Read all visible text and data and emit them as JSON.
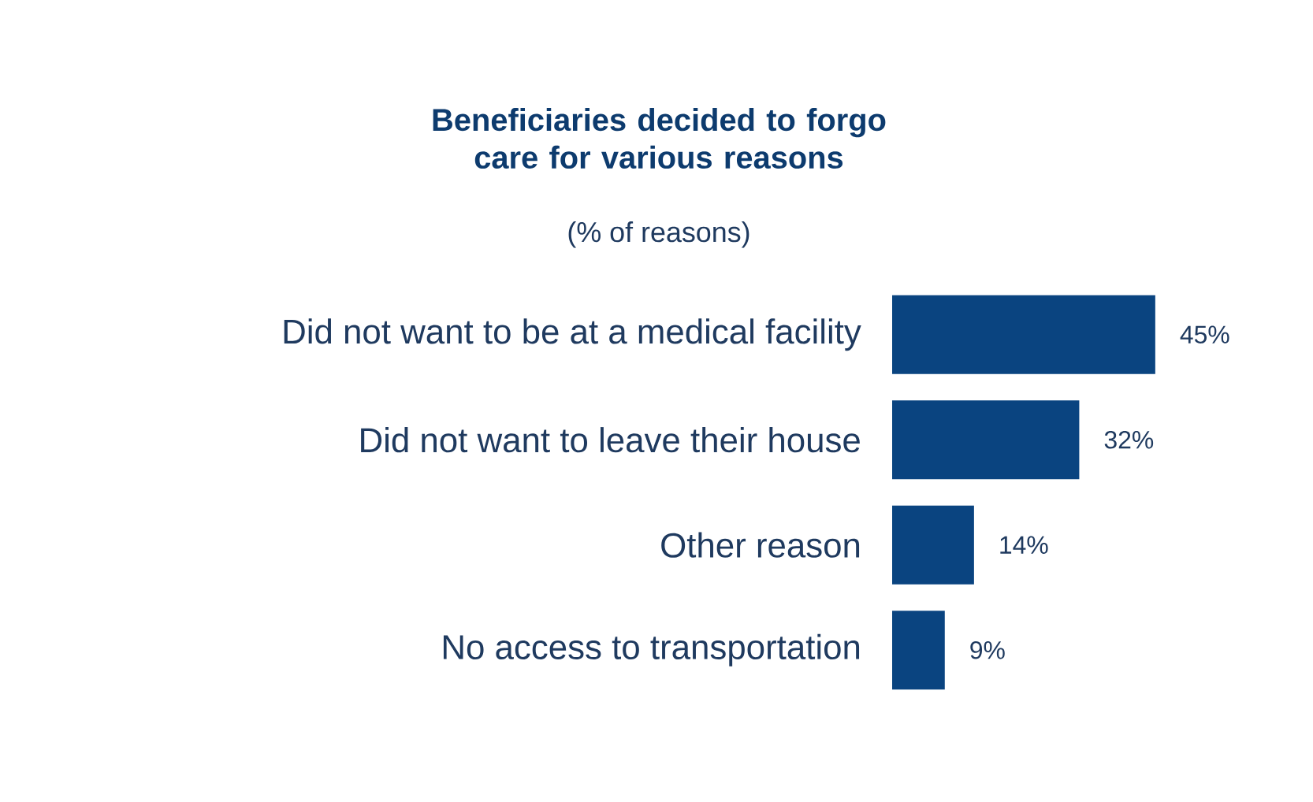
{
  "chart_data": {
    "type": "bar",
    "orientation": "horizontal",
    "title": "Beneficiaries decided to forgo care for various reasons",
    "subtitle": "(% of reasons)",
    "categories": [
      "Did not want to be at a medical facility",
      "Did not want to leave their house",
      "Other reason",
      "No access to transportation"
    ],
    "values": [
      45,
      32,
      14,
      9
    ],
    "value_labels": [
      "45%",
      "32%",
      "14%",
      "9%"
    ],
    "color": "#0a4480"
  }
}
